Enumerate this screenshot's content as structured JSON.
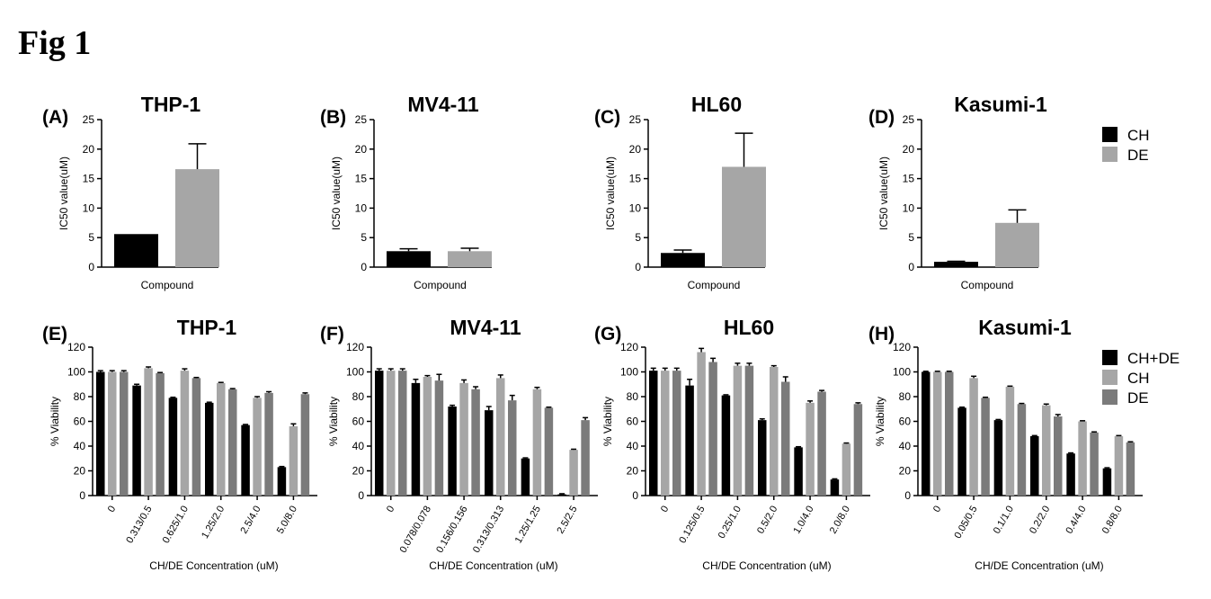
{
  "figure_title": "Fig 1",
  "colors": {
    "CH+DE": "#000000",
    "CH": "#a6a6a6",
    "DE": "#7b7b7b",
    "axis": "#000000"
  },
  "legends": [
    {
      "entries": [
        "CH",
        "DE"
      ],
      "colors": [
        "#000000",
        "#a6a6a6"
      ],
      "placement": "right"
    },
    {
      "entries": [
        "CH+DE",
        "CH",
        "DE"
      ],
      "colors": [
        "#000000",
        "#a6a6a6",
        "#7b7b7b"
      ],
      "placement": "right"
    }
  ],
  "chart_data": [
    {
      "panel": "(A)",
      "title": "THP-1",
      "type": "bar",
      "ylabel": "IC50 value(uM)",
      "xlabel": "Compound",
      "ylim": [
        0,
        25
      ],
      "yticks": [
        0,
        5,
        10,
        15,
        20,
        25
      ],
      "series": [
        {
          "name": "CH",
          "value": 5.6,
          "err": 0
        },
        {
          "name": "DE",
          "value": 16.6,
          "err": 4.3
        }
      ]
    },
    {
      "panel": "(B)",
      "title": "MV4-11",
      "type": "bar",
      "ylabel": "IC50 value(uM)",
      "xlabel": "Compound",
      "ylim": [
        0,
        25
      ],
      "yticks": [
        0,
        5,
        10,
        15,
        20,
        25
      ],
      "series": [
        {
          "name": "CH",
          "value": 2.7,
          "err": 0.4
        },
        {
          "name": "DE",
          "value": 2.7,
          "err": 0.5
        }
      ]
    },
    {
      "panel": "(C)",
      "title": "HL60",
      "type": "bar",
      "ylabel": "IC50 value(uM)",
      "xlabel": "Compound",
      "ylim": [
        0,
        25
      ],
      "yticks": [
        0,
        5,
        10,
        15,
        20,
        25
      ],
      "series": [
        {
          "name": "CH",
          "value": 2.4,
          "err": 0.5
        },
        {
          "name": "DE",
          "value": 17.0,
          "err": 5.7
        }
      ]
    },
    {
      "panel": "(D)",
      "title": "Kasumi-1",
      "type": "bar",
      "ylabel": "IC50 value(uM)",
      "xlabel": "Compound",
      "ylim": [
        0,
        25
      ],
      "yticks": [
        0,
        5,
        10,
        15,
        20,
        25
      ],
      "series": [
        {
          "name": "CH",
          "value": 0.9,
          "err": 0.1
        },
        {
          "name": "DE",
          "value": 7.5,
          "err": 2.2
        }
      ]
    },
    {
      "panel": "(E)",
      "title": "THP-1",
      "type": "bar",
      "ylabel": "% Viability",
      "xlabel": "CH/DE Concentration (uM)",
      "ylim": [
        0,
        120
      ],
      "yticks": [
        0,
        20,
        40,
        60,
        80,
        100,
        120
      ],
      "categories": [
        "0",
        "0.313/0.5",
        "0.625/1.0",
        "1.25/2.0",
        "2.5/4.0",
        "5.0/8.0"
      ],
      "series": [
        {
          "name": "CH+DE",
          "values": [
            100,
            89,
            79,
            75,
            57,
            23
          ],
          "errors": [
            1,
            1,
            0.5,
            0.5,
            0.5,
            0.5
          ]
        },
        {
          "name": "CH",
          "values": [
            100,
            103,
            101,
            91,
            79,
            56
          ],
          "errors": [
            1,
            1,
            1.5,
            0.5,
            1,
            2
          ]
        },
        {
          "name": "DE",
          "values": [
            100,
            99,
            95,
            86,
            83,
            82
          ],
          "errors": [
            1,
            0.5,
            0.5,
            0.5,
            1,
            1
          ]
        }
      ]
    },
    {
      "panel": "(F)",
      "title": "MV4-11",
      "type": "bar",
      "ylabel": "% Viability",
      "xlabel": "CH/DE Concentration (uM)",
      "ylim": [
        0,
        120
      ],
      "yticks": [
        0,
        20,
        40,
        60,
        80,
        100,
        120
      ],
      "categories": [
        "0",
        "0.078/0.078",
        "0.156/0.156",
        "0.313/0.313",
        "1.25/1.25",
        "2.5/2.5"
      ],
      "series": [
        {
          "name": "CH+DE",
          "values": [
            101,
            91,
            72,
            69,
            30,
            1
          ],
          "errors": [
            1.5,
            3,
            1,
            3,
            0.5,
            0.5
          ]
        },
        {
          "name": "CH",
          "values": [
            101,
            96,
            91,
            95,
            86,
            37
          ],
          "errors": [
            1.5,
            1,
            2.5,
            2.5,
            1.5,
            0.5
          ]
        },
        {
          "name": "DE",
          "values": [
            101,
            93,
            86,
            77,
            71,
            61
          ],
          "errors": [
            1.5,
            5,
            2,
            4,
            0.5,
            2
          ]
        }
      ]
    },
    {
      "panel": "(G)",
      "title": "HL60",
      "type": "bar",
      "ylabel": "% Viability",
      "xlabel": "CH/DE Concentration (uM)",
      "ylim": [
        0,
        120
      ],
      "yticks": [
        0,
        20,
        40,
        60,
        80,
        100,
        120
      ],
      "categories": [
        "0",
        "0.125/0.5",
        "0.25/1.0",
        "0.5/2.0",
        "1.0/4.0",
        "2.0/8.0"
      ],
      "series": [
        {
          "name": "CH+DE",
          "values": [
            101,
            89,
            81,
            61,
            39,
            13
          ],
          "errors": [
            2,
            5,
            0.5,
            1,
            0.5,
            0.5
          ]
        },
        {
          "name": "CH",
          "values": [
            101,
            116,
            105,
            104,
            75,
            42
          ],
          "errors": [
            2,
            3,
            2,
            1,
            1.5,
            0.5
          ]
        },
        {
          "name": "DE",
          "values": [
            101,
            108,
            105,
            92,
            84,
            74
          ],
          "errors": [
            2,
            3,
            2,
            4,
            1,
            1
          ]
        }
      ]
    },
    {
      "panel": "(H)",
      "title": "Kasumi-1",
      "type": "bar",
      "ylabel": "% Viability",
      "xlabel": "CH/DE Concentration (uM)",
      "ylim": [
        0,
        120
      ],
      "yticks": [
        0,
        20,
        40,
        60,
        80,
        100,
        120
      ],
      "categories": [
        "0",
        "0.05/0.5",
        "0.1/1.0",
        "0.2/2.0",
        "0.4/4.0",
        "0.8/8.0"
      ],
      "series": [
        {
          "name": "CH+DE",
          "values": [
            100,
            71,
            61,
            48,
            34,
            22
          ],
          "errors": [
            0.5,
            0.5,
            0.5,
            0.5,
            0.5,
            0.5
          ]
        },
        {
          "name": "CH",
          "values": [
            100,
            95,
            88,
            73,
            60,
            48
          ],
          "errors": [
            0.5,
            1.5,
            0.5,
            1,
            0.5,
            0.5
          ]
        },
        {
          "name": "DE",
          "values": [
            100,
            79,
            74,
            64,
            51,
            43
          ],
          "errors": [
            0.5,
            0.5,
            0.5,
            1.5,
            0.5,
            0.5
          ]
        }
      ]
    }
  ]
}
